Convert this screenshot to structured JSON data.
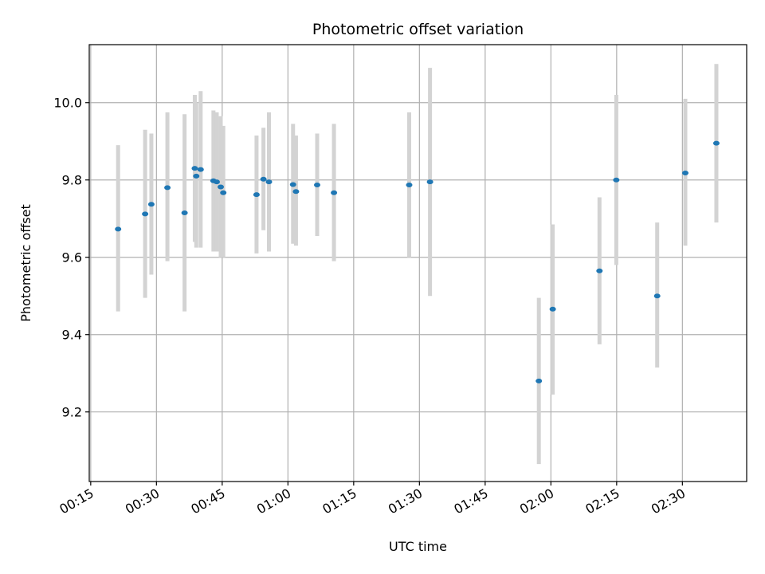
{
  "chart_data": {
    "type": "scatter",
    "title": "Photometric offset variation",
    "xlabel": "UTC time",
    "ylabel": "Photometric offset",
    "x_unit": "HH:MM UTC",
    "x_ticks": [
      "00:15",
      "00:30",
      "00:45",
      "01:00",
      "01:15",
      "01:30",
      "01:45",
      "02:00",
      "02:15",
      "02:30"
    ],
    "y_ticks": [
      "9.2",
      "9.4",
      "9.6",
      "9.8",
      "10.0"
    ],
    "xlim": [
      "00:14:40",
      "02:44:40"
    ],
    "ylim": [
      9.02,
      10.15
    ],
    "grid": true,
    "colors": {
      "point": "#1f77b4",
      "error_bar": "#d3d3d3",
      "grid": "#b0b0b0"
    },
    "series": [
      {
        "points": [
          {
            "x": "00:21:15",
            "y": 9.673,
            "y_low": 9.46,
            "y_high": 9.89
          },
          {
            "x": "00:27:25",
            "y": 9.712,
            "y_low": 9.495,
            "y_high": 9.93
          },
          {
            "x": "00:28:50",
            "y": 9.737,
            "y_low": 9.555,
            "y_high": 9.92
          },
          {
            "x": "00:32:30",
            "y": 9.78,
            "y_low": 9.59,
            "y_high": 9.975
          },
          {
            "x": "00:36:25",
            "y": 9.715,
            "y_low": 9.46,
            "y_high": 9.97
          },
          {
            "x": "00:38:45",
            "y": 9.83,
            "y_low": 9.64,
            "y_high": 10.02
          },
          {
            "x": "00:39:05",
            "y": 9.81,
            "y_low": 9.625,
            "y_high": 10.0
          },
          {
            "x": "00:40:05",
            "y": 9.827,
            "y_low": 9.625,
            "y_high": 10.03
          },
          {
            "x": "00:43:00",
            "y": 9.798,
            "y_low": 9.615,
            "y_high": 9.98
          },
          {
            "x": "00:43:45",
            "y": 9.795,
            "y_low": 9.615,
            "y_high": 9.975
          },
          {
            "x": "00:44:40",
            "y": 9.782,
            "y_low": 9.6,
            "y_high": 9.965
          },
          {
            "x": "00:45:15",
            "y": 9.767,
            "y_low": 9.6,
            "y_high": 9.94
          },
          {
            "x": "00:52:50",
            "y": 9.762,
            "y_low": 9.61,
            "y_high": 9.915
          },
          {
            "x": "00:54:25",
            "y": 9.802,
            "y_low": 9.67,
            "y_high": 9.935
          },
          {
            "x": "00:55:40",
            "y": 9.795,
            "y_low": 9.615,
            "y_high": 9.975
          },
          {
            "x": "01:01:10",
            "y": 9.788,
            "y_low": 9.635,
            "y_high": 9.945
          },
          {
            "x": "01:01:50",
            "y": 9.77,
            "y_low": 9.63,
            "y_high": 9.915
          },
          {
            "x": "01:06:40",
            "y": 9.787,
            "y_low": 9.655,
            "y_high": 9.92
          },
          {
            "x": "01:10:30",
            "y": 9.767,
            "y_low": 9.59,
            "y_high": 9.945
          },
          {
            "x": "01:27:40",
            "y": 9.787,
            "y_low": 9.6,
            "y_high": 9.975
          },
          {
            "x": "01:32:25",
            "y": 9.795,
            "y_low": 9.5,
            "y_high": 10.09
          },
          {
            "x": "01:57:15",
            "y": 9.28,
            "y_low": 9.065,
            "y_high": 9.495
          },
          {
            "x": "02:00:25",
            "y": 9.466,
            "y_low": 9.245,
            "y_high": 9.685
          },
          {
            "x": "02:11:05",
            "y": 9.565,
            "y_low": 9.375,
            "y_high": 9.755
          },
          {
            "x": "02:14:55",
            "y": 9.8,
            "y_low": 9.58,
            "y_high": 10.02
          },
          {
            "x": "02:24:15",
            "y": 9.5,
            "y_low": 9.315,
            "y_high": 9.69
          },
          {
            "x": "02:30:40",
            "y": 9.818,
            "y_low": 9.63,
            "y_high": 10.01
          },
          {
            "x": "02:37:45",
            "y": 9.895,
            "y_low": 9.69,
            "y_high": 10.1
          }
        ]
      }
    ]
  }
}
